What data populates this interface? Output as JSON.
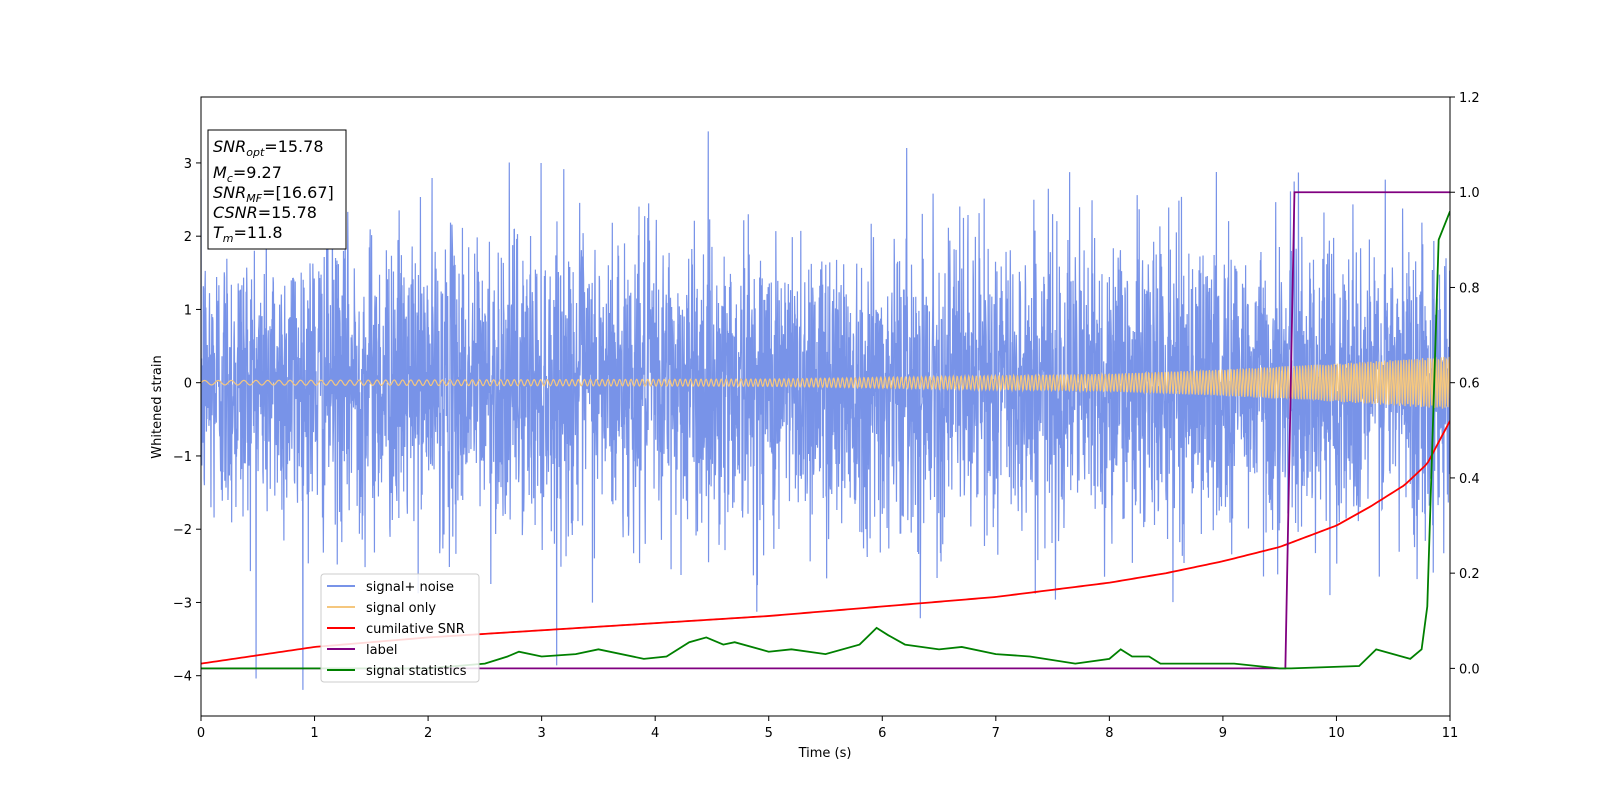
{
  "chart_data": {
    "type": "line",
    "xlabel": "Time (s)",
    "ylabel": "Whitened strain",
    "xlim": [
      0,
      11
    ],
    "ylim_left": [
      -4.55,
      3.9
    ],
    "ylim_right": [
      -0.1,
      1.2
    ],
    "x_ticks": [
      "0",
      "1",
      "2",
      "3",
      "4",
      "5",
      "6",
      "7",
      "8",
      "9",
      "10",
      "11"
    ],
    "y_ticks_left": [
      "3",
      "2",
      "1",
      "0",
      "−1",
      "−2",
      "−3",
      "−4"
    ],
    "y_ticks_right": [
      "1.2",
      "1.0",
      "0.8",
      "0.6",
      "0.4",
      "0.2",
      "0.0"
    ],
    "annotation": {
      "lines": [
        {
          "sym": "SNR",
          "sub": "opt",
          "value": "=15.78"
        },
        {
          "sym": "M",
          "sub": "c",
          "value": "=9.27"
        },
        {
          "sym": "SNR",
          "sub": "MF",
          "value": "=[16.67]"
        },
        {
          "sym": "CSNR",
          "sub": "",
          "value": "=15.78"
        },
        {
          "sym": "T",
          "sub": "m",
          "value": "=11.8"
        }
      ]
    },
    "legend": {
      "placement": "lower-left",
      "entries": [
        {
          "label": "signal+ noise",
          "color": "#7893e8"
        },
        {
          "label": "signal only",
          "color": "#f5c77e"
        },
        {
          "label": "cumilative SNR",
          "color": "#ff0000"
        },
        {
          "label": "label",
          "color": "#800080"
        },
        {
          "label": "signal statistics",
          "color": "#008000"
        }
      ]
    },
    "series": [
      {
        "name": "signal+ noise",
        "axis": "left",
        "color": "#7893e8",
        "note": "whitened noise, std ~1, peaks to ~3.5 and ~-4.2",
        "noise_std": 1.0
      },
      {
        "name": "signal only",
        "axis": "left",
        "color": "#f5c77e",
        "amplitude": [
          [
            0,
            0.03
          ],
          [
            5,
            0.05
          ],
          [
            8,
            0.12
          ],
          [
            9,
            0.18
          ],
          [
            10,
            0.26
          ],
          [
            11,
            0.36
          ]
        ]
      },
      {
        "name": "cumilative SNR",
        "axis": "right",
        "x": [
          0,
          1,
          2,
          3,
          4,
          5,
          6,
          7,
          8,
          8.5,
          9,
          9.5,
          10,
          10.3,
          10.6,
          10.8,
          11
        ],
        "y": [
          0.01,
          0.045,
          0.065,
          0.08,
          0.095,
          0.11,
          0.13,
          0.15,
          0.18,
          0.2,
          0.225,
          0.255,
          0.3,
          0.34,
          0.385,
          0.43,
          0.52
        ]
      },
      {
        "name": "label",
        "axis": "right",
        "x": [
          0,
          9.55,
          9.63,
          11
        ],
        "y": [
          0.0,
          0.0,
          1.0,
          1.0
        ]
      },
      {
        "name": "signal statistics",
        "axis": "right",
        "x": [
          0,
          1,
          2,
          2.5,
          2.7,
          2.8,
          3,
          3.3,
          3.5,
          3.9,
          4.1,
          4.3,
          4.45,
          4.6,
          4.7,
          5,
          5.2,
          5.5,
          5.8,
          5.95,
          6.05,
          6.2,
          6.5,
          6.7,
          7.0,
          7.3,
          7.7,
          8.0,
          8.1,
          8.2,
          8.35,
          8.45,
          8.8,
          9.1,
          9.5,
          9.6,
          10.2,
          10.35,
          10.5,
          10.65,
          10.75,
          10.8,
          10.9,
          11
        ],
        "y": [
          0.0,
          0.0,
          0.0,
          0.01,
          0.025,
          0.035,
          0.025,
          0.03,
          0.04,
          0.02,
          0.025,
          0.055,
          0.065,
          0.05,
          0.055,
          0.035,
          0.04,
          0.03,
          0.05,
          0.085,
          0.07,
          0.05,
          0.04,
          0.045,
          0.03,
          0.025,
          0.01,
          0.02,
          0.04,
          0.025,
          0.025,
          0.01,
          0.01,
          0.01,
          0.0,
          0.0,
          0.005,
          0.04,
          0.03,
          0.02,
          0.04,
          0.13,
          0.9,
          0.96
        ]
      }
    ]
  }
}
